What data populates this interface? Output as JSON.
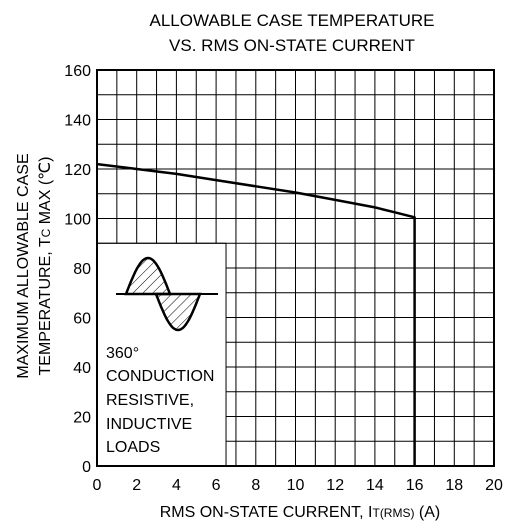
{
  "chart_data": {
    "type": "line",
    "title_lines": [
      "ALLOWABLE CASE TEMPERATURE",
      "VS. RMS ON-STATE CURRENT"
    ],
    "xlabel": "RMS ON-STATE CURRENT, IT(RMS) (A)",
    "xlabel_parts": {
      "main": "RMS ON-STATE CURRENT, I",
      "sub": "T(RMS)",
      "tail": " (A)"
    },
    "ylabel_lines": [
      "MAXIMUM ALLOWABLE CASE",
      "TEMPERATURE, TC MAX (℃)"
    ],
    "ylabel_parts": {
      "line1": "MAXIMUM ALLOWABLE CASE",
      "pre": "TEMPERATURE, T",
      "sub": "C",
      "post": " MAX (℃)"
    },
    "xlim": [
      0,
      20
    ],
    "ylim": [
      0,
      160
    ],
    "xticks": [
      0,
      2,
      4,
      6,
      8,
      10,
      12,
      14,
      16,
      18,
      20
    ],
    "yticks": [
      0,
      20,
      40,
      60,
      80,
      100,
      120,
      140,
      160
    ],
    "x_minor_step": 1,
    "y_minor_step": 10,
    "grid": true,
    "series": [
      {
        "x": [
          0,
          2,
          4,
          6,
          8,
          10,
          12,
          14,
          15,
          16,
          16
        ],
        "y": [
          122,
          120,
          118,
          115.5,
          113,
          110.5,
          107.5,
          104.5,
          102.5,
          100.5,
          0
        ]
      }
    ],
    "annotation": {
      "lines": [
        "360°",
        "CONDUCTION",
        "RESISTIVE,",
        "INDUCTIVE",
        "LOADS"
      ]
    }
  }
}
